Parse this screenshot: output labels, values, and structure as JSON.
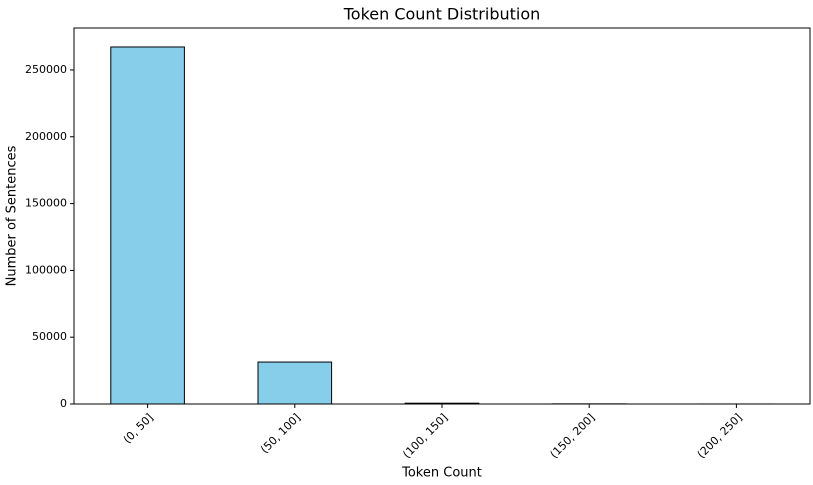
{
  "chart_data": {
    "type": "bar",
    "title": "Token Count Distribution",
    "x_label": "Token Count",
    "y_label": "Number of Sentences",
    "categories": [
      "(0, 50]",
      "(50, 100]",
      "(100, 150]",
      "(150, 200]",
      "(200, 250]"
    ],
    "values": [
      267200,
      31400,
      600,
      100,
      20
    ],
    "color": "#87ceeb",
    "ylim": [
      0,
      281400
    ],
    "yticks": [
      0,
      50000,
      100000,
      150000,
      200000,
      250000
    ],
    "grid": false
  }
}
